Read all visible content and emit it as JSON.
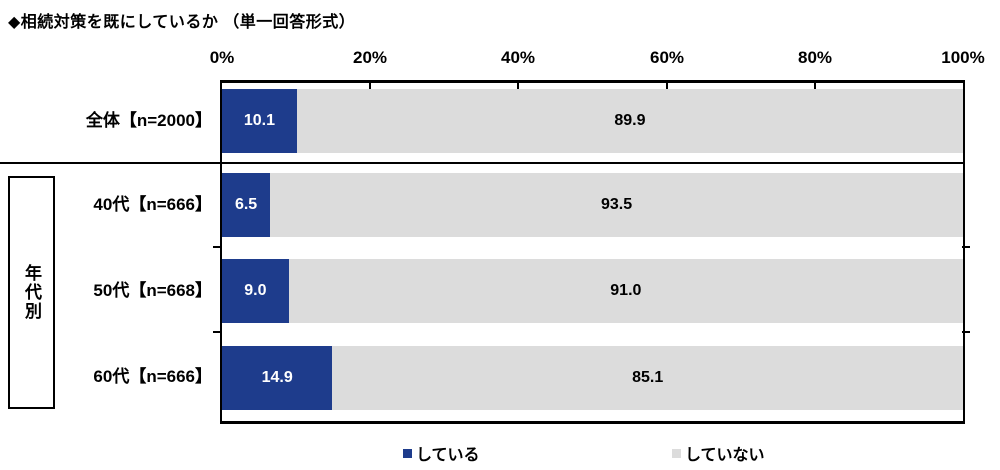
{
  "title": "◆相続対策を既にしているか （単一回答形式）",
  "group_label": "年代別",
  "accent_color": "#1e3c8c",
  "muted_color": "#dcdcdc",
  "legend": [
    {
      "label": "している",
      "color": "#1e3c8c"
    },
    {
      "label": "していない",
      "color": "#dcdcdc"
    }
  ],
  "chart_data": {
    "type": "bar",
    "orientation": "horizontal",
    "stacked": true,
    "title": "◆相続対策を既にしているか （単一回答形式）",
    "categories": [
      "全体【n=2000】",
      "40代【n=666】",
      "50代【n=668】",
      "60代【n=666】"
    ],
    "series": [
      {
        "name": "している",
        "color": "#1e3c8c",
        "values": [
          10.1,
          6.5,
          9.0,
          14.9
        ],
        "labels": [
          "10.1",
          "6.5",
          "9.0",
          "14.9"
        ]
      },
      {
        "name": "していない",
        "color": "#dcdcdc",
        "values": [
          89.9,
          93.5,
          91.0,
          85.1
        ],
        "labels": [
          "89.9",
          "93.5",
          "91.0",
          "85.1"
        ]
      }
    ],
    "xlim": [
      0,
      100
    ],
    "x_ticks": [
      "0%",
      "20%",
      "40%",
      "60%",
      "80%",
      "100%"
    ],
    "x_tick_positions_pct": [
      0,
      20,
      40,
      60,
      80,
      100
    ],
    "legend_position": "bottom",
    "grid": false,
    "group_annotation": {
      "label": "年代別",
      "applies_to": [
        "40代【n=666】",
        "50代【n=668】",
        "60代【n=666】"
      ]
    }
  }
}
